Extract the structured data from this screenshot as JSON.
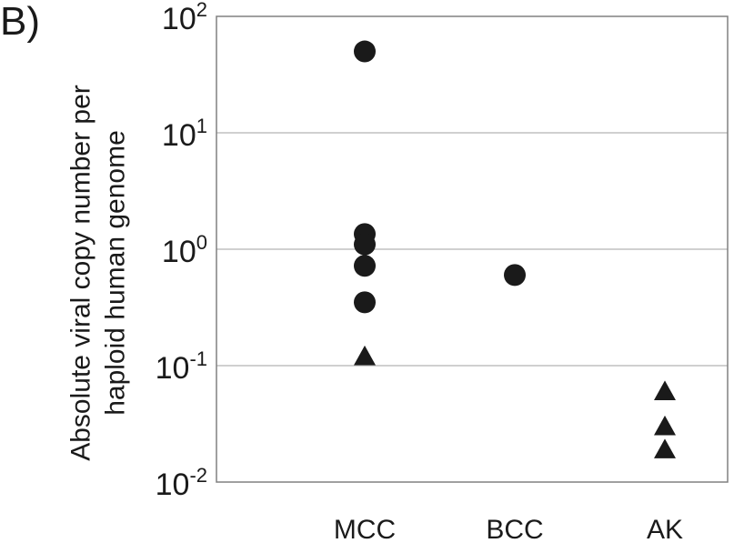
{
  "panel_label": "B)",
  "chart_data": {
    "type": "scatter",
    "xlabel": "",
    "ylabel": [
      "Absolute viral copy number per",
      "haploid human genome"
    ],
    "yscale": "log",
    "ylim": [
      0.01,
      100
    ],
    "y_tick_labels": [
      {
        "value": 100,
        "label": "10",
        "exp": "2"
      },
      {
        "value": 10,
        "label": "10",
        "exp": "1"
      },
      {
        "value": 1,
        "label": "10",
        "exp": "0"
      },
      {
        "value": 0.1,
        "label": "10",
        "exp": "-1"
      },
      {
        "value": 0.01,
        "label": "10",
        "exp": "-2"
      }
    ],
    "gridlines": [
      10,
      1,
      0.1
    ],
    "categories": [
      "MCC",
      "BCC",
      "AK"
    ],
    "points": [
      {
        "category": "MCC",
        "marker": "circle",
        "y": 50
      },
      {
        "category": "MCC",
        "marker": "circle",
        "y": 1.35
      },
      {
        "category": "MCC",
        "marker": "circle",
        "y": 1.1
      },
      {
        "category": "MCC",
        "marker": "circle",
        "y": 0.72
      },
      {
        "category": "MCC",
        "marker": "circle",
        "y": 0.35
      },
      {
        "category": "MCC",
        "marker": "triangle",
        "y": 0.12
      },
      {
        "category": "BCC",
        "marker": "circle",
        "y": 0.6
      },
      {
        "category": "AK",
        "marker": "triangle",
        "y": 0.06
      },
      {
        "category": "AK",
        "marker": "triangle",
        "y": 0.03
      },
      {
        "category": "AK",
        "marker": "triangle",
        "y": 0.019
      }
    ],
    "colors": {
      "marker": "#1a1a1a",
      "grid": "#b4b4b4",
      "frame": "#808080",
      "text": "#1a1a1a"
    }
  }
}
